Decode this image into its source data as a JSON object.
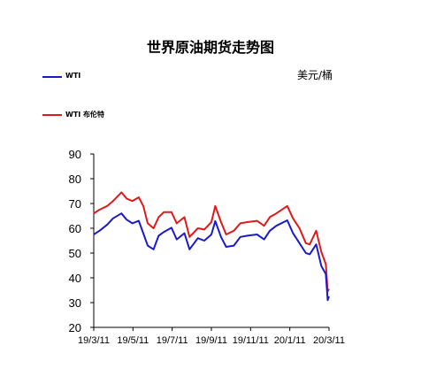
{
  "chart_data": {
    "type": "line",
    "title": "世界原油期货走势图",
    "unit": "美元/桶",
    "ylim": [
      20,
      90
    ],
    "yticks": [
      20,
      30,
      40,
      50,
      60,
      70,
      80,
      90
    ],
    "x_tick_labels": [
      "19/3/11",
      "19/5/11",
      "19/7/11",
      "19/9/11",
      "19/11/11",
      "20/1/11",
      "20/3/11"
    ],
    "xlim": [
      "2019-03-11",
      "2020-03-11"
    ],
    "legend_position": "top-left",
    "grid": false,
    "series": [
      {
        "name": "WTI",
        "color": "#1a1acc",
        "points": [
          [
            "2019-03-11",
            57.5
          ],
          [
            "2019-03-20",
            59.0
          ],
          [
            "2019-04-01",
            61.5
          ],
          [
            "2019-04-10",
            64.0
          ],
          [
            "2019-04-23",
            66.0
          ],
          [
            "2019-05-01",
            63.5
          ],
          [
            "2019-05-10",
            62.0
          ],
          [
            "2019-05-20",
            63.0
          ],
          [
            "2019-05-27",
            58.0
          ],
          [
            "2019-06-03",
            53.0
          ],
          [
            "2019-06-12",
            51.5
          ],
          [
            "2019-06-20",
            57.0
          ],
          [
            "2019-06-28",
            58.5
          ],
          [
            "2019-07-10",
            60.2
          ],
          [
            "2019-07-18",
            55.5
          ],
          [
            "2019-07-30",
            58.0
          ],
          [
            "2019-08-07",
            51.5
          ],
          [
            "2019-08-20",
            56.0
          ],
          [
            "2019-08-30",
            55.0
          ],
          [
            "2019-09-10",
            57.5
          ],
          [
            "2019-09-16",
            62.9
          ],
          [
            "2019-09-25",
            56.5
          ],
          [
            "2019-10-03",
            52.5
          ],
          [
            "2019-10-15",
            53.0
          ],
          [
            "2019-10-25",
            56.5
          ],
          [
            "2019-11-05",
            57.0
          ],
          [
            "2019-11-20",
            57.5
          ],
          [
            "2019-12-01",
            55.5
          ],
          [
            "2019-12-10",
            59.0
          ],
          [
            "2019-12-20",
            61.0
          ],
          [
            "2020-01-06",
            63.2
          ],
          [
            "2020-01-15",
            58.0
          ],
          [
            "2020-01-25",
            54.0
          ],
          [
            "2020-02-04",
            50.0
          ],
          [
            "2020-02-10",
            49.5
          ],
          [
            "2020-02-20",
            53.5
          ],
          [
            "2020-02-28",
            44.8
          ],
          [
            "2020-03-06",
            41.5
          ],
          [
            "2020-03-09",
            31.0
          ],
          [
            "2020-03-11",
            32.5
          ]
        ]
      },
      {
        "name": "WTI 布伦特",
        "color": "#e01a1a",
        "points": [
          [
            "2019-03-11",
            66.0
          ],
          [
            "2019-03-20",
            67.5
          ],
          [
            "2019-04-01",
            69.0
          ],
          [
            "2019-04-10",
            71.0
          ],
          [
            "2019-04-23",
            74.5
          ],
          [
            "2019-05-01",
            72.0
          ],
          [
            "2019-05-10",
            71.0
          ],
          [
            "2019-05-20",
            72.5
          ],
          [
            "2019-05-27",
            69.0
          ],
          [
            "2019-06-03",
            62.0
          ],
          [
            "2019-06-12",
            60.0
          ],
          [
            "2019-06-20",
            64.5
          ],
          [
            "2019-06-28",
            66.5
          ],
          [
            "2019-07-10",
            66.5
          ],
          [
            "2019-07-18",
            62.0
          ],
          [
            "2019-07-30",
            64.5
          ],
          [
            "2019-08-07",
            56.5
          ],
          [
            "2019-08-20",
            60.0
          ],
          [
            "2019-08-30",
            59.5
          ],
          [
            "2019-09-10",
            62.5
          ],
          [
            "2019-09-16",
            69.0
          ],
          [
            "2019-09-25",
            62.5
          ],
          [
            "2019-10-03",
            57.5
          ],
          [
            "2019-10-15",
            59.0
          ],
          [
            "2019-10-25",
            62.0
          ],
          [
            "2019-11-05",
            62.5
          ],
          [
            "2019-11-20",
            63.0
          ],
          [
            "2019-12-01",
            61.0
          ],
          [
            "2019-12-10",
            64.5
          ],
          [
            "2019-12-20",
            66.0
          ],
          [
            "2020-01-06",
            69.0
          ],
          [
            "2020-01-15",
            64.0
          ],
          [
            "2020-01-25",
            60.0
          ],
          [
            "2020-02-04",
            54.0
          ],
          [
            "2020-02-10",
            53.5
          ],
          [
            "2020-02-20",
            59.0
          ],
          [
            "2020-02-28",
            50.5
          ],
          [
            "2020-03-06",
            45.5
          ],
          [
            "2020-03-09",
            34.5
          ],
          [
            "2020-03-11",
            35.5
          ]
        ]
      }
    ]
  }
}
